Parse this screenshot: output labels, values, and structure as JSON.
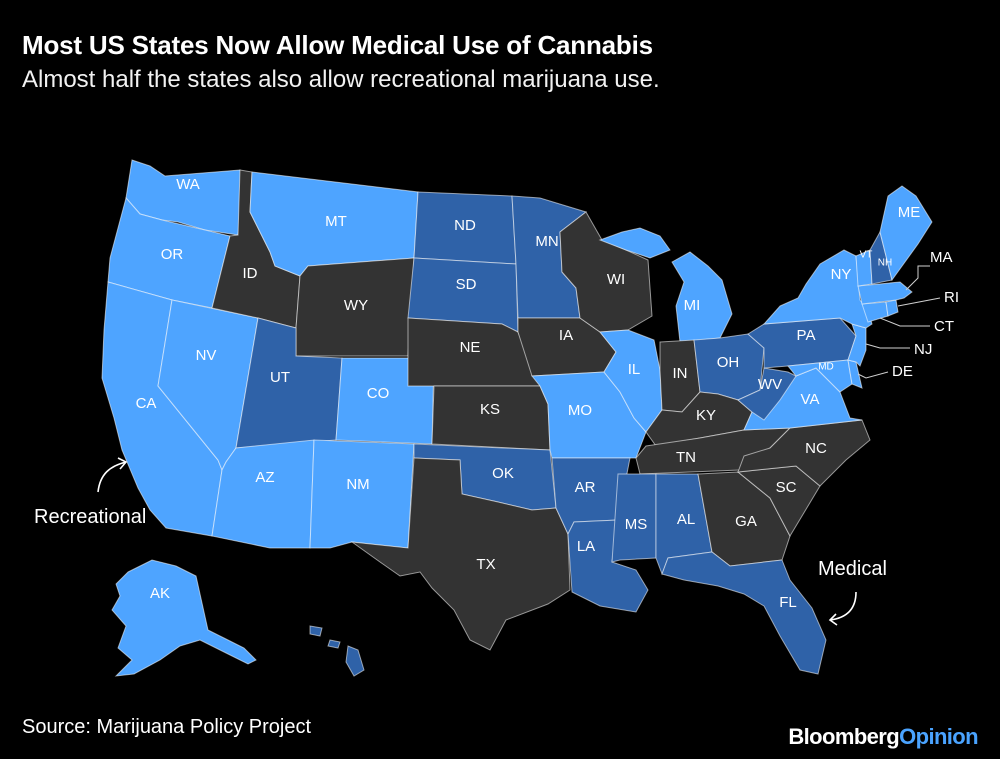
{
  "title": "Most US States Now Allow Medical Use of Cannabis",
  "subtitle": "Almost half the states also allow recreational marijuana use.",
  "source": "Source: Marijuana Policy Project",
  "brand": {
    "part1": "Bloomberg",
    "part2": "Opinion"
  },
  "legend": {
    "recreational": "Recreational",
    "medical": "Medical"
  },
  "colors": {
    "recreational": "#4ea4ff",
    "medical": "#2f62a8",
    "none": "#333333",
    "background": "#000000",
    "brand_accent": "#4aa3ff"
  },
  "status_by_state": {
    "WA": "recreational",
    "OR": "recreational",
    "CA": "recreational",
    "NV": "recreational",
    "MT": "recreational",
    "AZ": "recreational",
    "CO": "recreational",
    "NM": "recreational",
    "IL": "recreational",
    "MI": "recreational",
    "MO": "recreational",
    "VA": "recreational",
    "NY": "recreational",
    "VT": "recreational",
    "ME": "recreational",
    "MA": "recreational",
    "CT": "recreational",
    "RI": "recreational",
    "NJ": "recreational",
    "MD": "recreational",
    "DE": "recreational",
    "AK": "recreational",
    "UT": "medical",
    "ND": "medical",
    "SD": "medical",
    "MN": "medical",
    "OK": "medical",
    "AR": "medical",
    "LA": "medical",
    "MS": "medical",
    "AL": "medical",
    "FL": "medical",
    "OH": "medical",
    "PA": "medical",
    "WV": "medical",
    "NH": "medical",
    "HI": "medical",
    "ID": "none",
    "WY": "none",
    "NE": "none",
    "KS": "none",
    "TX": "none",
    "IA": "none",
    "WI": "none",
    "IN": "none",
    "KY": "none",
    "TN": "none",
    "NC": "none",
    "SC": "none",
    "GA": "none"
  },
  "labels": {
    "WA": "WA",
    "OR": "OR",
    "CA": "CA",
    "NV": "NV",
    "ID": "ID",
    "MT": "MT",
    "WY": "WY",
    "UT": "UT",
    "CO": "CO",
    "AZ": "AZ",
    "NM": "NM",
    "ND": "ND",
    "SD": "SD",
    "NE": "NE",
    "KS": "KS",
    "OK": "OK",
    "TX": "TX",
    "MN": "MN",
    "IA": "IA",
    "MO": "MO",
    "AR": "AR",
    "LA": "LA",
    "WI": "WI",
    "IL": "IL",
    "MI": "MI",
    "IN": "IN",
    "OH": "OH",
    "KY": "KY",
    "TN": "TN",
    "MS": "MS",
    "AL": "AL",
    "GA": "GA",
    "FL": "FL",
    "SC": "SC",
    "NC": "NC",
    "VA": "VA",
    "WV": "WV",
    "PA": "PA",
    "NY": "NY",
    "VT": "VT",
    "NH": "NH",
    "ME": "ME",
    "MA": "MA",
    "RI": "RI",
    "CT": "CT",
    "NJ": "NJ",
    "DE": "DE",
    "MD": "MD",
    "AK": "AK"
  }
}
